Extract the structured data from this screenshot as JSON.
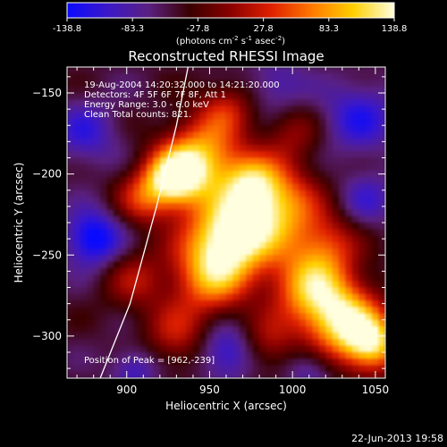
{
  "colorbar": {
    "tick_labels": [
      "-138.8",
      "-83.3",
      "-27.8",
      "27.8",
      "83.3",
      "138.8"
    ],
    "units_label_prefix": "(photons cm",
    "units_sup1": "-2",
    "units_mid1": " s",
    "units_sup2": "-1",
    "units_mid2": " asec",
    "units_sup3": "-2",
    "units_suffix": ")",
    "colors": [
      "#0a0aff",
      "#3c18c8",
      "#5a2080",
      "#3a0000",
      "#8a0000",
      "#e02000",
      "#ff7a00",
      "#ffd000",
      "#ffffe0"
    ]
  },
  "chart_data": {
    "type": "heatmap",
    "title": "Reconstructed RHESSI Image",
    "xlabel": "Heliocentric X (arcsec)",
    "ylabel": "Heliocentric Y (arcsec)",
    "xlim": [
      864,
      1056
    ],
    "ylim": [
      -326,
      -134
    ],
    "x_ticks": [
      900,
      950,
      1000,
      1050
    ],
    "y_ticks": [
      -150,
      -200,
      -250,
      -300
    ],
    "annotations": [
      "19-Aug-2004 14:20:32.000 to 14:21:20.000",
      "Detectors: 4F 5F 6F 7F 8F, Att 1",
      "Energy Range: 3.0 - 6.0 keV",
      "Clean    Total counts: 821."
    ],
    "peak_label": "Position of Peak = [962,-239]",
    "peak": [
      962,
      -239
    ],
    "limb_curve": [
      [
        937,
        -134
      ],
      [
        930,
        -170
      ],
      [
        918,
        -220
      ],
      [
        902,
        -280
      ],
      [
        884,
        -326
      ]
    ],
    "value_range": [
      -138.8,
      138.8
    ]
  },
  "footer": {
    "timestamp": "22-Jun-2013 19:58"
  }
}
